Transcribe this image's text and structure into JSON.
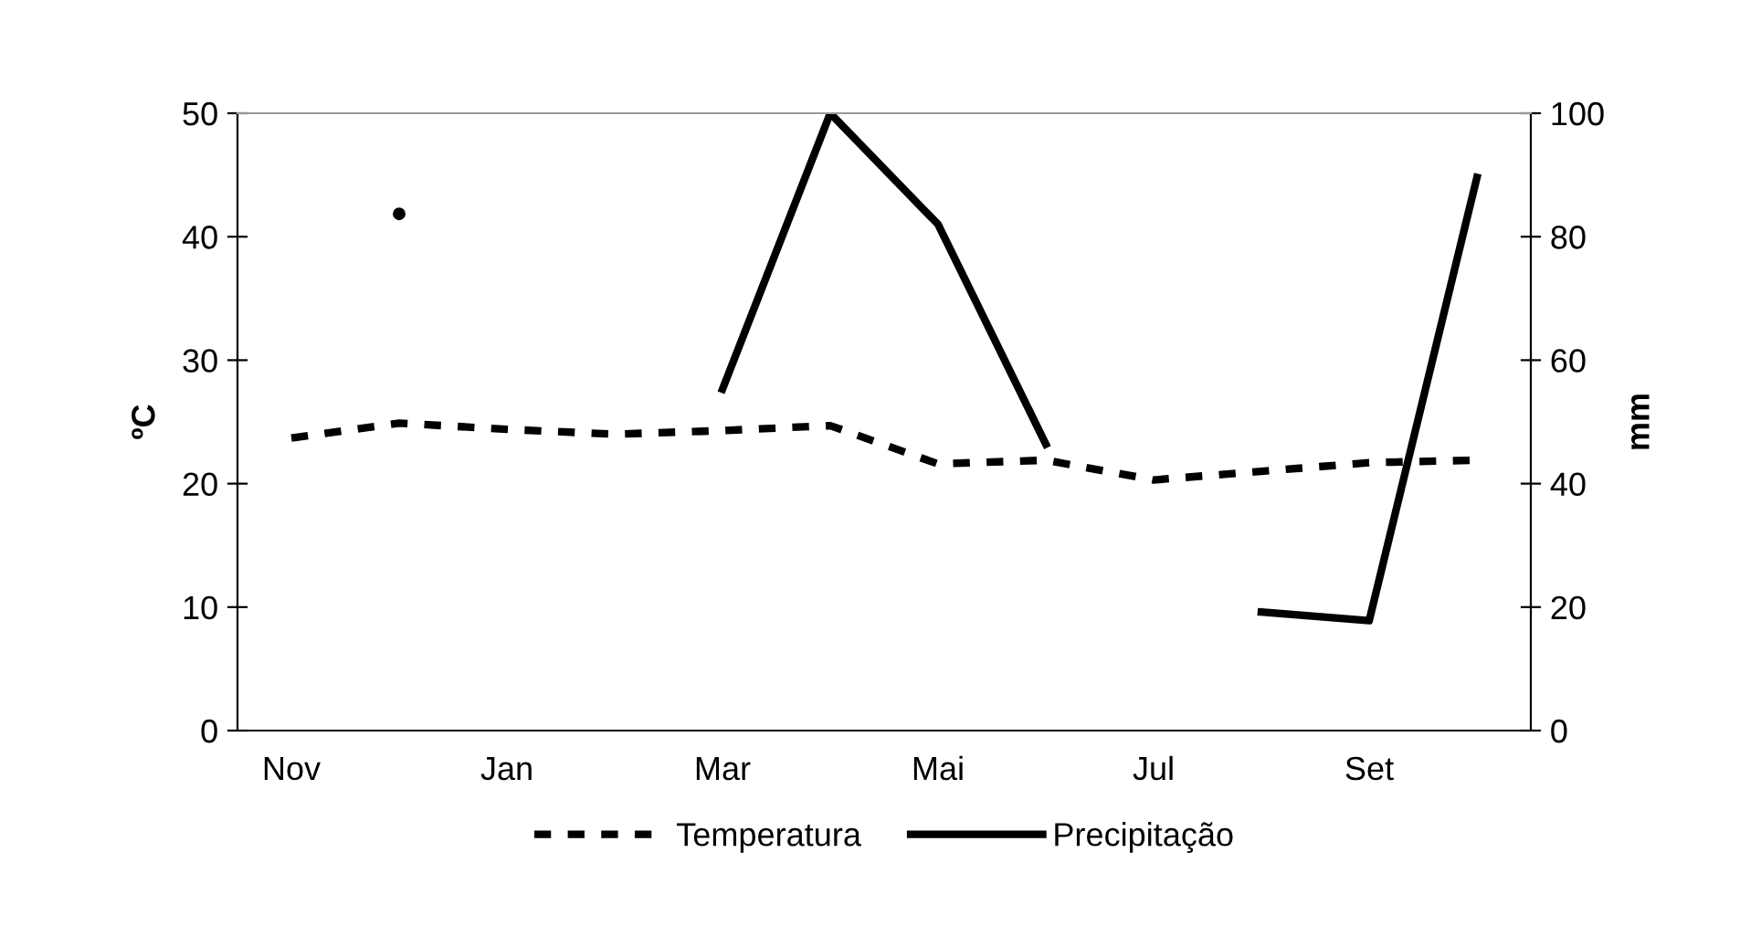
{
  "chart_data": {
    "type": "line",
    "categories": [
      "Nov",
      null,
      "Jan",
      null,
      "Mar",
      null,
      "Mai",
      null,
      "Jul",
      null,
      "Set",
      null
    ],
    "ylabel": "ºC",
    "y2label": "mm",
    "ylim": [
      0,
      50
    ],
    "yticks": [
      0,
      10,
      20,
      30,
      40,
      50
    ],
    "y2lim": [
      0,
      100
    ],
    "y2ticks": [
      0,
      20,
      40,
      60,
      80,
      100
    ],
    "legend": "bottom",
    "grid": false,
    "series": [
      {
        "name": "Temperatura",
        "color": "#000000",
        "line_style": "dashed",
        "values": [
          23.7,
          24.9,
          24.4,
          24.0,
          24.3,
          24.7,
          21.6,
          21.9,
          20.3,
          21.0,
          21.7,
          21.9
        ]
      },
      {
        "name": "Precipitação",
        "color": "#000000",
        "line_style": "solid",
        "axis": "y2",
        "values": [
          null,
          83.7,
          null,
          null,
          55.3,
          100,
          82,
          46.4,
          null,
          19.2,
          17.8,
          89.6
        ]
      }
    ]
  }
}
